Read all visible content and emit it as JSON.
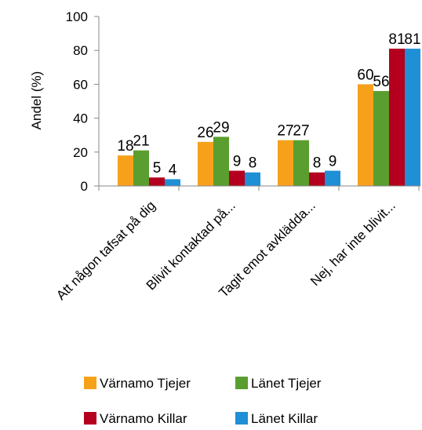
{
  "chart_data": {
    "type": "bar",
    "ylabel": "Andel (%)",
    "ylim": [
      0,
      100
    ],
    "yticks": [
      0,
      20,
      40,
      60,
      80,
      100
    ],
    "grid": false,
    "legend_position": "bottom",
    "categories": [
      "Att någon tafsat på dig",
      "Blivit kontaktad på...",
      "Tagit emot avklädda...",
      "Nej, har inte blivit..."
    ],
    "series": [
      {
        "name": "Värnamo Tjejer",
        "color": "#F7A11A",
        "values": [
          18,
          26,
          27,
          60
        ]
      },
      {
        "name": "Länet Tjejer",
        "color": "#5A9E2F",
        "values": [
          21,
          29,
          27,
          56
        ]
      },
      {
        "name": "Värnamo Killar",
        "color": "#B4001E",
        "values": [
          5,
          9,
          8,
          81
        ]
      },
      {
        "name": "Länet Killar",
        "color": "#1F8FD6",
        "values": [
          4,
          8,
          9,
          81
        ]
      }
    ]
  }
}
